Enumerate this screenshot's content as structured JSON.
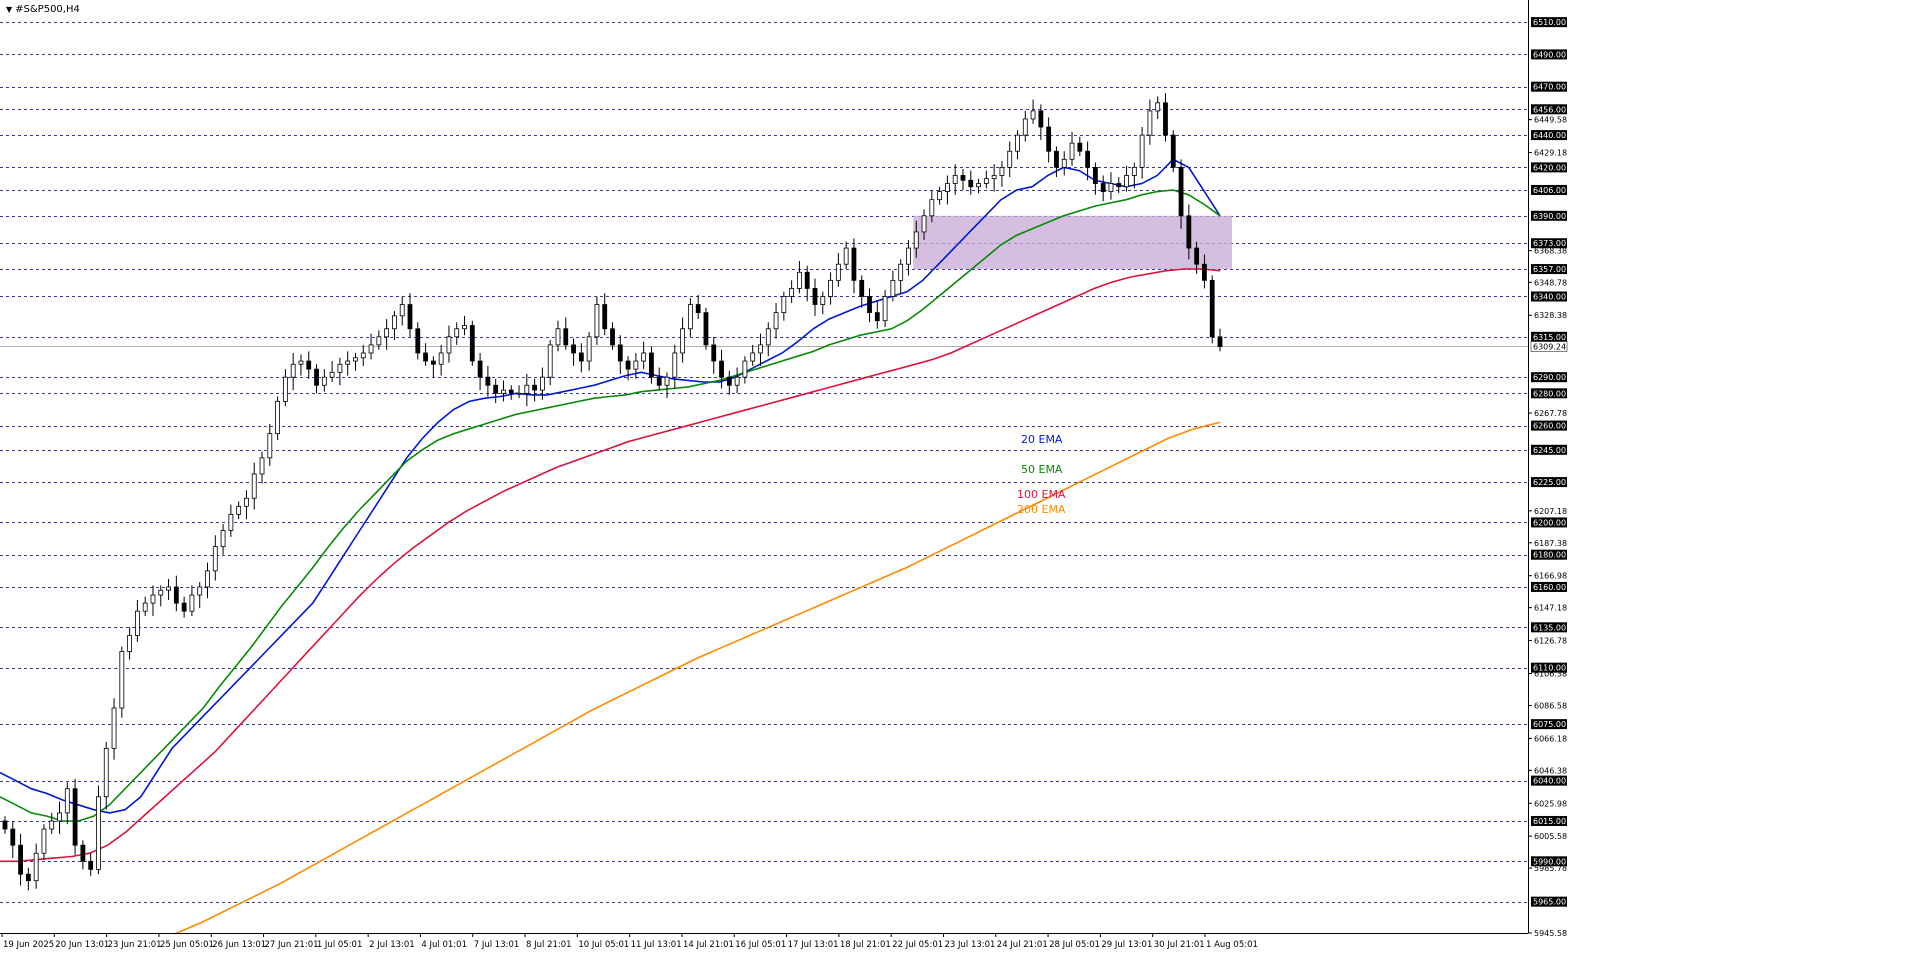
{
  "symbol": {
    "title": "#S&P500,H4",
    "dropdown_icon": "triangle-down-icon"
  },
  "colors": {
    "background": "#ffffff",
    "candle_up_fill": "#ffffff",
    "candle_down_fill": "#000000",
    "candle_outline": "#000000",
    "grid_dash": "#3b3b8f",
    "ema20": "#0019d6",
    "ema50": "#068a06",
    "ema100": "#dc143c",
    "ema200": "#ff8a00",
    "zone": "#c7a8d4",
    "price_box": "#000000",
    "price_box_text": "#ffffff"
  },
  "ema_labels": [
    {
      "text": "20 EMA",
      "color": "#0019d6"
    },
    {
      "text": "50 EMA",
      "color": "#068a06"
    },
    {
      "text": "100 EMA",
      "color": "#dc143c"
    },
    {
      "text": "200 EMA",
      "color": "#ff8a00"
    }
  ],
  "chart_data": {
    "type": "candlestick",
    "title": "#S&P500,H4",
    "ylim": [
      5945.58,
      6520
    ],
    "grid": true,
    "grid_levels": [
      6510,
      6490,
      6470,
      6456,
      6440,
      6420,
      6406,
      6390,
      6373,
      6357,
      6340,
      6315,
      6290,
      6280,
      6260,
      6245,
      6225,
      6200,
      6180,
      6160,
      6135,
      6110,
      6075,
      6040,
      6015,
      5990,
      5965
    ],
    "axis_minor_ticks": [
      6449.58,
      6429.18,
      6368.38,
      6348.78,
      6328.38,
      6267.78,
      6207.18,
      6187.38,
      6166.98,
      6147.18,
      6126.78,
      6106.38,
      6086.58,
      6066.18,
      6046.38,
      6025.98,
      6005.58,
      5985.78,
      5945.58
    ],
    "current_price": 6309.24,
    "x_labels": [
      "19 Jun 2025",
      "20 Jun 13:01",
      "23 Jun 21:01",
      "25 Jun 05:01",
      "26 Jun 13:01",
      "27 Jun 21:01",
      "1 Jul 05:01",
      "2 Jul 13:01",
      "4 Jul 01:01",
      "7 Jul 13:01",
      "8 Jul 21:01",
      "10 Jul 05:01",
      "11 Jul 13:01",
      "14 Jul 21:01",
      "16 Jul 05:01",
      "17 Jul 13:01",
      "18 Jul 21:01",
      "22 Jul 05:01",
      "23 Jul 13:01",
      "24 Jul 21:01",
      "28 Jul 05:01",
      "29 Jul 13:01",
      "30 Jul 21:01",
      "1 Aug 05:01"
    ],
    "zone": {
      "low": 6357,
      "high": 6390,
      "start_label": "22 Jul 05:01"
    },
    "closes": [
      6010,
      6000,
      5982,
      5978,
      5995,
      6010,
      6015,
      6020,
      6035,
      6000,
      5990,
      5985,
      6030,
      6060,
      6085,
      6120,
      6130,
      6145,
      6150,
      6155,
      6158,
      6160,
      6150,
      6145,
      6155,
      6160,
      6170,
      6185,
      6195,
      6205,
      6210,
      6215,
      6230,
      6240,
      6255,
      6275,
      6290,
      6298,
      6300,
      6295,
      6285,
      6290,
      6293,
      6298,
      6300,
      6302,
      6305,
      6310,
      6315,
      6320,
      6328,
      6335,
      6320,
      6305,
      6300,
      6298,
      6305,
      6315,
      6320,
      6322,
      6300,
      6290,
      6285,
      6280,
      6282,
      6280,
      6280,
      6285,
      6282,
      6290,
      6310,
      6320,
      6310,
      6305,
      6300,
      6315,
      6335,
      6320,
      6310,
      6300,
      6295,
      6300,
      6305,
      6290,
      6285,
      6290,
      6305,
      6320,
      6335,
      6330,
      6310,
      6300,
      6290,
      6285,
      6290,
      6300,
      6305,
      6310,
      6320,
      6330,
      6340,
      6345,
      6355,
      6345,
      6335,
      6340,
      6350,
      6360,
      6370,
      6350,
      6340,
      6330,
      6325,
      6340,
      6350,
      6360,
      6370,
      6380,
      6390,
      6400,
      6405,
      6410,
      6415,
      6412,
      6408,
      6410,
      6413,
      6415,
      6420,
      6430,
      6440,
      6450,
      6455,
      6445,
      6430,
      6420,
      6425,
      6435,
      6430,
      6420,
      6410,
      6405,
      6410,
      6408,
      6415,
      6420,
      6440,
      6455,
      6460,
      6440,
      6420,
      6390,
      6370,
      6360,
      6350,
      6315,
      6309
    ],
    "series": [
      {
        "name": "20 EMA",
        "values": [
          6045,
          6040,
          6035,
          6032,
          6028,
          6025,
          6022,
          6020,
          6022,
          6030,
          6045,
          6060,
          6070,
          6080,
          6090,
          6100,
          6110,
          6120,
          6130,
          6140,
          6150,
          6165,
          6180,
          6195,
          6210,
          6225,
          6240,
          6252,
          6262,
          6270,
          6275,
          6277,
          6278,
          6280,
          6279,
          6279,
          6281,
          6283,
          6285,
          6288,
          6291,
          6293,
          6291,
          6289,
          6288,
          6287,
          6287,
          6290,
          6295,
          6300,
          6305,
          6312,
          6320,
          6326,
          6330,
          6334,
          6337,
          6340,
          6343,
          6350,
          6360,
          6370,
          6380,
          6390,
          6400,
          6406,
          6408,
          6415,
          6420,
          6418,
          6412,
          6410,
          6408,
          6410,
          6415,
          6425,
          6420,
          6405,
          6390
        ]
      },
      {
        "name": "50 EMA",
        "values": [
          6030,
          6025,
          6020,
          6018,
          6015,
          6015,
          6018,
          6025,
          6035,
          6045,
          6055,
          6065,
          6075,
          6085,
          6098,
          6110,
          6122,
          6135,
          6148,
          6160,
          6172,
          6185,
          6197,
          6208,
          6218,
          6228,
          6238,
          6245,
          6251,
          6255,
          6258,
          6261,
          6264,
          6267,
          6269,
          6271,
          6273,
          6275,
          6277,
          6278,
          6279,
          6281,
          6282,
          6283,
          6284,
          6286,
          6288,
          6291,
          6294,
          6297,
          6300,
          6303,
          6306,
          6310,
          6313,
          6316,
          6318,
          6320,
          6325,
          6332,
          6340,
          6348,
          6356,
          6364,
          6372,
          6378,
          6382,
          6386,
          6390,
          6393,
          6396,
          6398,
          6400,
          6403,
          6405,
          6406,
          6403,
          6397,
          6390
        ]
      },
      {
        "name": "100 EMA",
        "values": [
          5990,
          5990,
          5991,
          5992,
          5993,
          5995,
          6000,
          6008,
          6018,
          6028,
          6038,
          6048,
          6058,
          6070,
          6082,
          6094,
          6106,
          6118,
          6130,
          6142,
          6154,
          6165,
          6175,
          6184,
          6192,
          6200,
          6207,
          6213,
          6219,
          6224,
          6229,
          6234,
          6238,
          6242,
          6246,
          6250,
          6253,
          6256,
          6259,
          6262,
          6265,
          6268,
          6271,
          6274,
          6277,
          6280,
          6283,
          6286,
          6289,
          6292,
          6295,
          6298,
          6301,
          6305,
          6310,
          6315,
          6320,
          6325,
          6330,
          6335,
          6340,
          6345,
          6349,
          6352,
          6354,
          6356,
          6357,
          6357,
          6356
        ]
      },
      {
        "name": "200 EMA",
        "values": [
          5945,
          5952,
          5960,
          5968,
          5976,
          5985,
          5994,
          6003,
          6012,
          6021,
          6030,
          6039,
          6048,
          6057,
          6066,
          6075,
          6084,
          6092,
          6100,
          6108,
          6116,
          6123,
          6130,
          6137,
          6144,
          6151,
          6158,
          6165,
          6172,
          6180,
          6188,
          6196,
          6204,
          6212,
          6220,
          6228,
          6236,
          6244,
          6252,
          6258,
          6262
        ]
      }
    ]
  }
}
